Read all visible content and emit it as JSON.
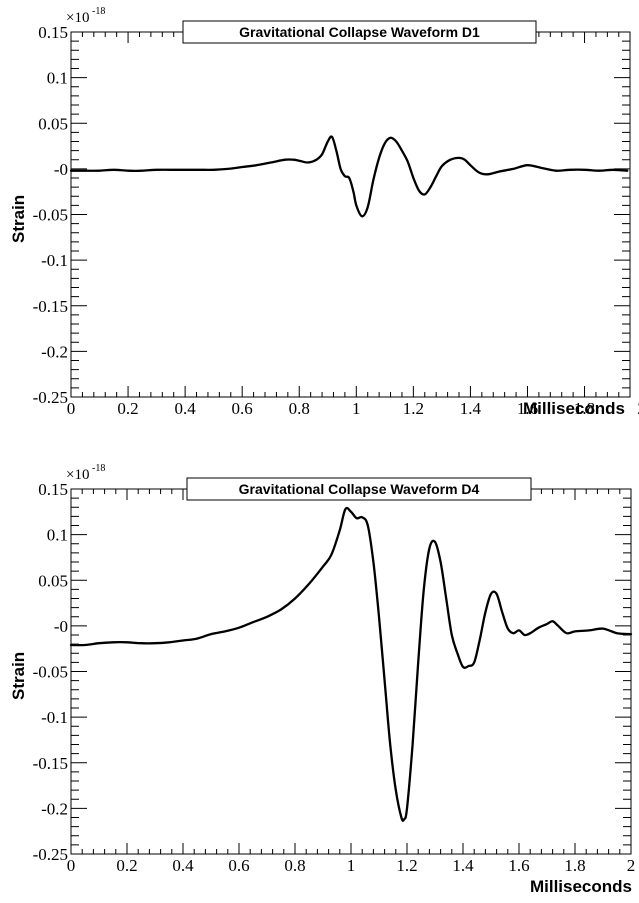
{
  "chart_data": [
    {
      "type": "line",
      "title": "Gravitational Collapse Waveform D1",
      "xlabel": "Milliseconds",
      "ylabel": "Strain",
      "y_exponent_base": "×10",
      "y_exponent_power": "-18",
      "xlim": [
        0,
        1.96
      ],
      "ylim": [
        -0.25,
        0.15
      ],
      "x_ticks": [
        0,
        0.2,
        0.4,
        0.6,
        0.8,
        1,
        1.2,
        1.4,
        1.6,
        1.8,
        2
      ],
      "x_tick_labels": [
        "0",
        "0.2",
        "0.4",
        "0.6",
        "0.8",
        "1",
        "1.2",
        "1.4",
        "1.6",
        "1.8",
        "2"
      ],
      "y_ticks": [
        -0.25,
        -0.2,
        -0.15,
        -0.1,
        -0.05,
        0,
        0.05,
        0.1,
        0.15
      ],
      "y_tick_labels": [
        "-0.25",
        "-0.2",
        "-0.15",
        "-0.1",
        "-0.05",
        "-0",
        "0.05",
        "0.1",
        "0.15"
      ],
      "grid": false,
      "series": [
        {
          "x": [
            0,
            0.05,
            0.1,
            0.15,
            0.2,
            0.25,
            0.3,
            0.35,
            0.4,
            0.45,
            0.5,
            0.55,
            0.6,
            0.65,
            0.7,
            0.75,
            0.78,
            0.8,
            0.83,
            0.86,
            0.88,
            0.9,
            0.915,
            0.93,
            0.945,
            0.96,
            0.975,
            0.99,
            1.0,
            1.02,
            1.04,
            1.06,
            1.08,
            1.1,
            1.12,
            1.14,
            1.16,
            1.18,
            1.2,
            1.22,
            1.24,
            1.26,
            1.28,
            1.3,
            1.33,
            1.36,
            1.38,
            1.4,
            1.43,
            1.46,
            1.5,
            1.55,
            1.6,
            1.65,
            1.7,
            1.75,
            1.8,
            1.85,
            1.9,
            1.95
          ],
          "y": [
            -0.002,
            -0.002,
            -0.002,
            -0.001,
            -0.002,
            -0.002,
            -0.001,
            -0.001,
            -0.001,
            -0.001,
            -0.001,
            0.0,
            0.002,
            0.004,
            0.007,
            0.01,
            0.01,
            0.009,
            0.007,
            0.01,
            0.016,
            0.03,
            0.035,
            0.02,
            0.0,
            -0.008,
            -0.01,
            -0.025,
            -0.04,
            -0.052,
            -0.042,
            -0.012,
            0.012,
            0.028,
            0.034,
            0.03,
            0.02,
            0.008,
            -0.01,
            -0.024,
            -0.028,
            -0.02,
            -0.008,
            0.003,
            0.01,
            0.012,
            0.01,
            0.004,
            -0.004,
            -0.006,
            -0.003,
            0.0,
            0.004,
            0.001,
            -0.002,
            -0.001,
            -0.001,
            -0.002,
            -0.001,
            -0.002
          ]
        }
      ]
    },
    {
      "type": "line",
      "title": "Gravitational Collapse Waveform D4",
      "xlabel": "Milliseconds",
      "ylabel": "Strain",
      "y_exponent_base": "×10",
      "y_exponent_power": "-18",
      "xlim": [
        0,
        2
      ],
      "ylim": [
        -0.25,
        0.15
      ],
      "x_ticks": [
        0,
        0.2,
        0.4,
        0.6,
        0.8,
        1,
        1.2,
        1.4,
        1.6,
        1.8,
        2
      ],
      "x_tick_labels": [
        "0",
        "0.2",
        "0.4",
        "0.6",
        "0.8",
        "1",
        "1.2",
        "1.4",
        "1.6",
        "1.8",
        "2"
      ],
      "y_ticks": [
        -0.25,
        -0.2,
        -0.15,
        -0.1,
        -0.05,
        0,
        0.05,
        0.1,
        0.15
      ],
      "y_tick_labels": [
        "-0.25",
        "-0.2",
        "-0.15",
        "-0.1",
        "-0.05",
        "-0",
        "0.05",
        "0.1",
        "0.15"
      ],
      "grid": false,
      "series": [
        {
          "x": [
            0,
            0.05,
            0.1,
            0.15,
            0.2,
            0.25,
            0.3,
            0.35,
            0.4,
            0.45,
            0.5,
            0.55,
            0.6,
            0.65,
            0.7,
            0.75,
            0.8,
            0.85,
            0.9,
            0.93,
            0.96,
            0.98,
            1.0,
            1.02,
            1.04,
            1.06,
            1.08,
            1.1,
            1.12,
            1.14,
            1.16,
            1.18,
            1.19,
            1.2,
            1.22,
            1.24,
            1.26,
            1.28,
            1.3,
            1.32,
            1.34,
            1.36,
            1.38,
            1.4,
            1.42,
            1.44,
            1.46,
            1.48,
            1.5,
            1.52,
            1.54,
            1.56,
            1.58,
            1.6,
            1.62,
            1.64,
            1.67,
            1.7,
            1.72,
            1.74,
            1.77,
            1.8,
            1.85,
            1.9,
            1.95,
            2.0
          ],
          "y": [
            -0.021,
            -0.021,
            -0.019,
            -0.018,
            -0.018,
            -0.019,
            -0.019,
            -0.018,
            -0.016,
            -0.014,
            -0.009,
            -0.006,
            -0.002,
            0.004,
            0.01,
            0.018,
            0.03,
            0.046,
            0.065,
            0.078,
            0.105,
            0.128,
            0.125,
            0.118,
            0.119,
            0.11,
            0.07,
            0.01,
            -0.06,
            -0.13,
            -0.18,
            -0.21,
            -0.212,
            -0.2,
            -0.13,
            -0.04,
            0.04,
            0.085,
            0.092,
            0.07,
            0.03,
            -0.01,
            -0.03,
            -0.045,
            -0.044,
            -0.04,
            -0.015,
            0.015,
            0.035,
            0.035,
            0.015,
            -0.003,
            -0.008,
            -0.005,
            -0.01,
            -0.008,
            -0.002,
            0.002,
            0.005,
            0.0,
            -0.008,
            -0.006,
            -0.005,
            -0.003,
            -0.008,
            -0.009
          ]
        }
      ]
    }
  ]
}
